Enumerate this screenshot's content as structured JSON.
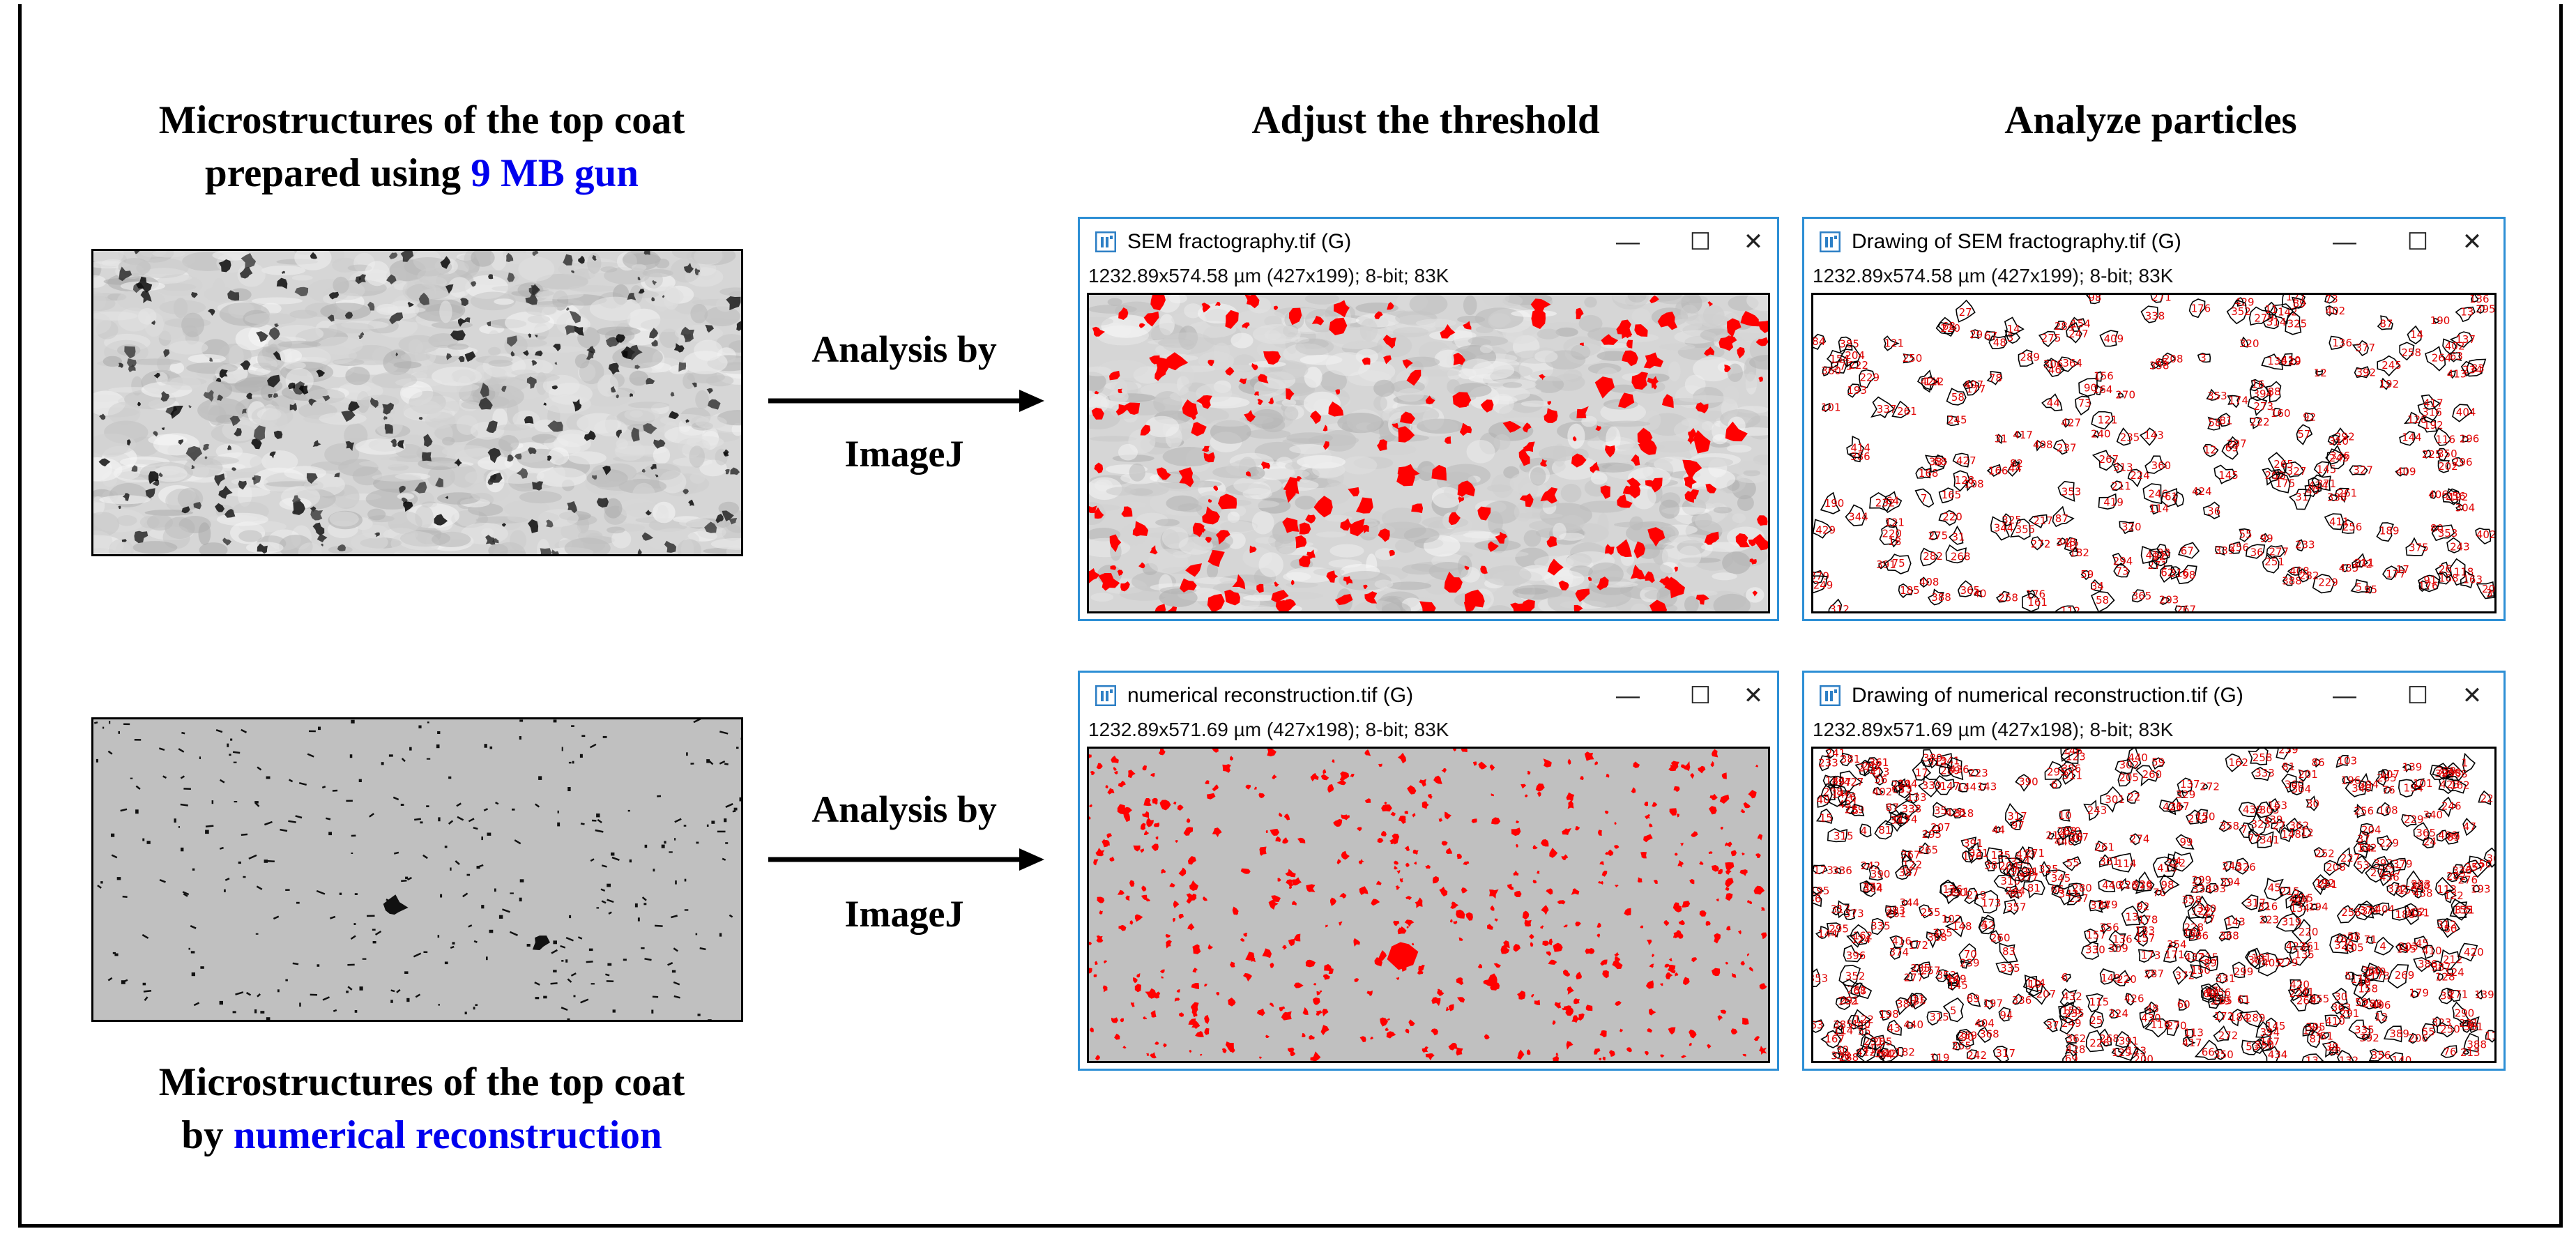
{
  "captions": {
    "top_left": {
      "line1": "Microstructures of the top coat",
      "line2_prefix": "prepared using ",
      "line2_highlight": "9 MB gun"
    },
    "bottom_left": {
      "line1": "Microstructures of the top coat",
      "line2_prefix": "by ",
      "line2_highlight": "numerical reconstruction"
    },
    "col_threshold": "Adjust the threshold",
    "col_particles": "Analyze particles"
  },
  "arrows": {
    "top": {
      "line1": "Analysis by",
      "line2": "ImageJ"
    },
    "bottom": {
      "line1": "Analysis by",
      "line2": "ImageJ"
    }
  },
  "windows": {
    "sem_threshold": {
      "title": "SEM fractography.tif (G)",
      "info": "1232.89x574.58 µm (427x199); 8-bit; 83K"
    },
    "sem_particles": {
      "title": "Drawing of SEM fractography.tif (G)",
      "info": "1232.89x574.58 µm (427x199); 8-bit; 83K"
    },
    "num_threshold": {
      "title": "numerical reconstruction.tif (G)",
      "info": "1232.89x571.69 µm (427x198); 8-bit; 83K"
    },
    "num_particles": {
      "title": "Drawing of numerical reconstruction.tif (G)",
      "info": "1232.89x571.69 µm (427x198); 8-bit; 83K"
    }
  },
  "window_controls": {
    "minimize": "—",
    "maximize": "☐",
    "close": "✕"
  },
  "colors": {
    "highlight_text": "#0000ee",
    "window_border": "#2d8fd5",
    "threshold_red": "#ff0000",
    "recon_gray": "#c0c0c0"
  },
  "icons": {
    "app": "imagej-icon",
    "minimize": "minimize-icon",
    "maximize": "maximize-icon",
    "close": "close-icon"
  }
}
